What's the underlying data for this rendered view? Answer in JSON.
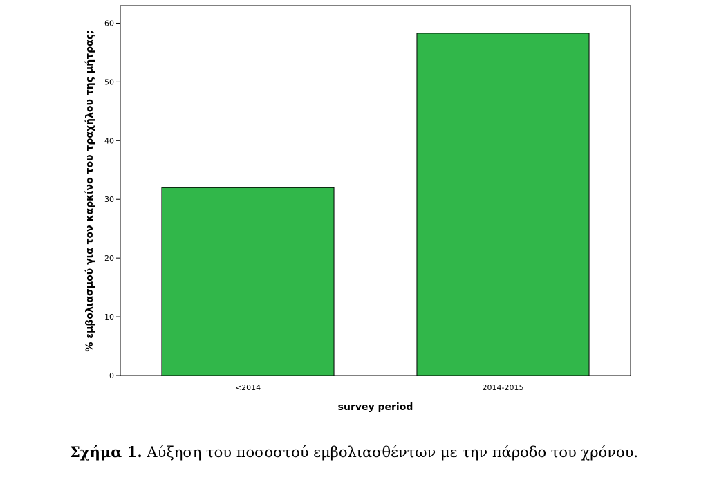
{
  "chart_data": {
    "type": "bar",
    "categories": [
      "<2014",
      "2014-2015"
    ],
    "values": [
      32,
      58.3
    ],
    "xlabel": "survey period",
    "ylabel": "% εμβολιασμού για τον καρκίνο του τραχήλου της μήτρας;",
    "ylim": [
      0,
      63
    ],
    "yticks": [
      0,
      10,
      20,
      30,
      40,
      50,
      60
    ],
    "grid": false,
    "bar_color": "#31b74a"
  },
  "caption": {
    "label": "Σχήμα 1.",
    "text": " Αύξηση του ποσοστού εμβολιασθέντων με την πάροδο του χρόνου."
  }
}
